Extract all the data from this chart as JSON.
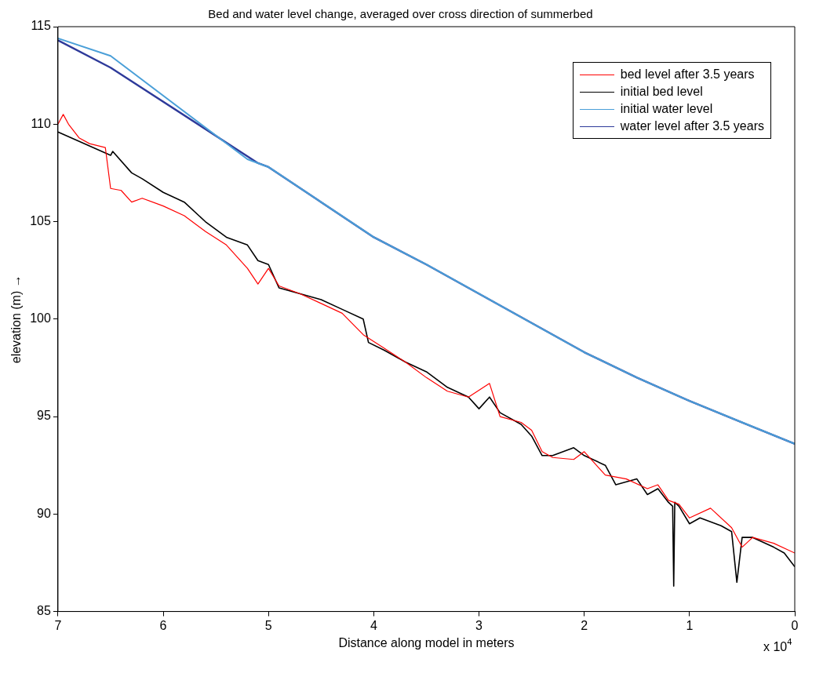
{
  "chart_data": {
    "type": "line",
    "title": "Bed and water level change, averaged over cross direction of summerbed",
    "xlabel": "Distance along model in meters",
    "ylabel": "elevation (m) →",
    "annotations": [
      "x 10$^{4}$"
    ],
    "xlim": [
      7,
      0
    ],
    "xticks": [
      7,
      6,
      5,
      4,
      3,
      2,
      1,
      0
    ],
    "ylim": [
      85,
      115
    ],
    "yticks": [
      85,
      90,
      95,
      100,
      105,
      110,
      115
    ],
    "grid": false,
    "legend": "top right",
    "marker": "none",
    "line_style": "solid",
    "series": [
      {
        "name": "bed level after 3.5 years",
        "color": "#ff0000",
        "x": [
          7.0,
          6.95,
          6.9,
          6.8,
          6.7,
          6.55,
          6.5,
          6.4,
          6.3,
          6.2,
          6.0,
          5.8,
          5.6,
          5.4,
          5.2,
          5.1,
          5.0,
          4.9,
          4.7,
          4.5,
          4.3,
          4.1,
          3.9,
          3.7,
          3.5,
          3.3,
          3.1,
          2.9,
          2.8,
          2.6,
          2.5,
          2.4,
          2.3,
          2.1,
          2.0,
          1.8,
          1.6,
          1.4,
          1.3,
          1.2,
          1.1,
          1.0,
          0.8,
          0.6,
          0.5,
          0.4,
          0.2,
          0.0
        ],
        "values": [
          110.0,
          110.5,
          110.0,
          109.3,
          109.0,
          108.8,
          106.7,
          106.6,
          106.0,
          106.2,
          105.8,
          105.3,
          104.5,
          103.8,
          102.6,
          101.8,
          102.6,
          101.7,
          101.3,
          100.8,
          100.3,
          99.2,
          98.5,
          97.8,
          97.0,
          96.3,
          96.0,
          96.7,
          95.0,
          94.7,
          94.3,
          93.2,
          92.9,
          92.8,
          93.2,
          92.0,
          91.8,
          91.3,
          91.5,
          90.7,
          90.5,
          89.8,
          90.3,
          89.3,
          88.3,
          88.8,
          88.5,
          88.0
        ]
      },
      {
        "name": "initial bed level",
        "color": "#000000",
        "x": [
          7.0,
          6.5,
          6.48,
          6.3,
          6.2,
          6.0,
          5.8,
          5.6,
          5.4,
          5.2,
          5.1,
          5.0,
          4.9,
          4.7,
          4.5,
          4.3,
          4.1,
          4.05,
          3.9,
          3.7,
          3.5,
          3.3,
          3.1,
          3.0,
          2.9,
          2.8,
          2.6,
          2.5,
          2.4,
          2.3,
          2.1,
          2.0,
          1.8,
          1.7,
          1.5,
          1.4,
          1.3,
          1.2,
          1.16,
          1.15,
          1.14,
          1.1,
          1.0,
          0.9,
          0.7,
          0.6,
          0.55,
          0.5,
          0.4,
          0.2,
          0.1,
          0.0
        ],
        "values": [
          109.6,
          108.4,
          108.6,
          107.5,
          107.2,
          106.5,
          106.0,
          105.0,
          104.2,
          103.8,
          103.0,
          102.8,
          101.6,
          101.3,
          101.0,
          100.5,
          100.0,
          98.8,
          98.4,
          97.8,
          97.3,
          96.5,
          96.0,
          95.4,
          96.0,
          95.2,
          94.6,
          94.0,
          93.0,
          93.0,
          93.4,
          93.0,
          92.5,
          91.5,
          91.8,
          91.0,
          91.3,
          90.6,
          90.4,
          86.3,
          90.6,
          90.4,
          89.5,
          89.8,
          89.4,
          89.1,
          86.5,
          88.8,
          88.8,
          88.3,
          88.0,
          87.3
        ]
      },
      {
        "name": "initial water level",
        "color": "#4a9fd8",
        "x": [
          7.0,
          6.5,
          5.2,
          5.0,
          4.5,
          4.0,
          3.5,
          3.0,
          2.5,
          2.0,
          1.5,
          1.0,
          0.5,
          0.0
        ],
        "values": [
          114.4,
          113.5,
          108.2,
          107.8,
          106.0,
          104.2,
          102.8,
          101.3,
          99.8,
          98.3,
          97.0,
          95.8,
          94.7,
          93.6
        ]
      },
      {
        "name": "water level after 3.5 years",
        "color": "#2e3a9a",
        "x": [
          7.0,
          6.5,
          5.1,
          5.0,
          4.5,
          4.0,
          3.5,
          3.0,
          2.5,
          2.0,
          1.5,
          1.0,
          0.5,
          0.0
        ],
        "values": [
          114.3,
          112.9,
          108.0,
          107.8,
          106.0,
          104.2,
          102.8,
          101.3,
          99.8,
          98.3,
          97.0,
          95.8,
          94.7,
          93.6
        ]
      }
    ]
  }
}
